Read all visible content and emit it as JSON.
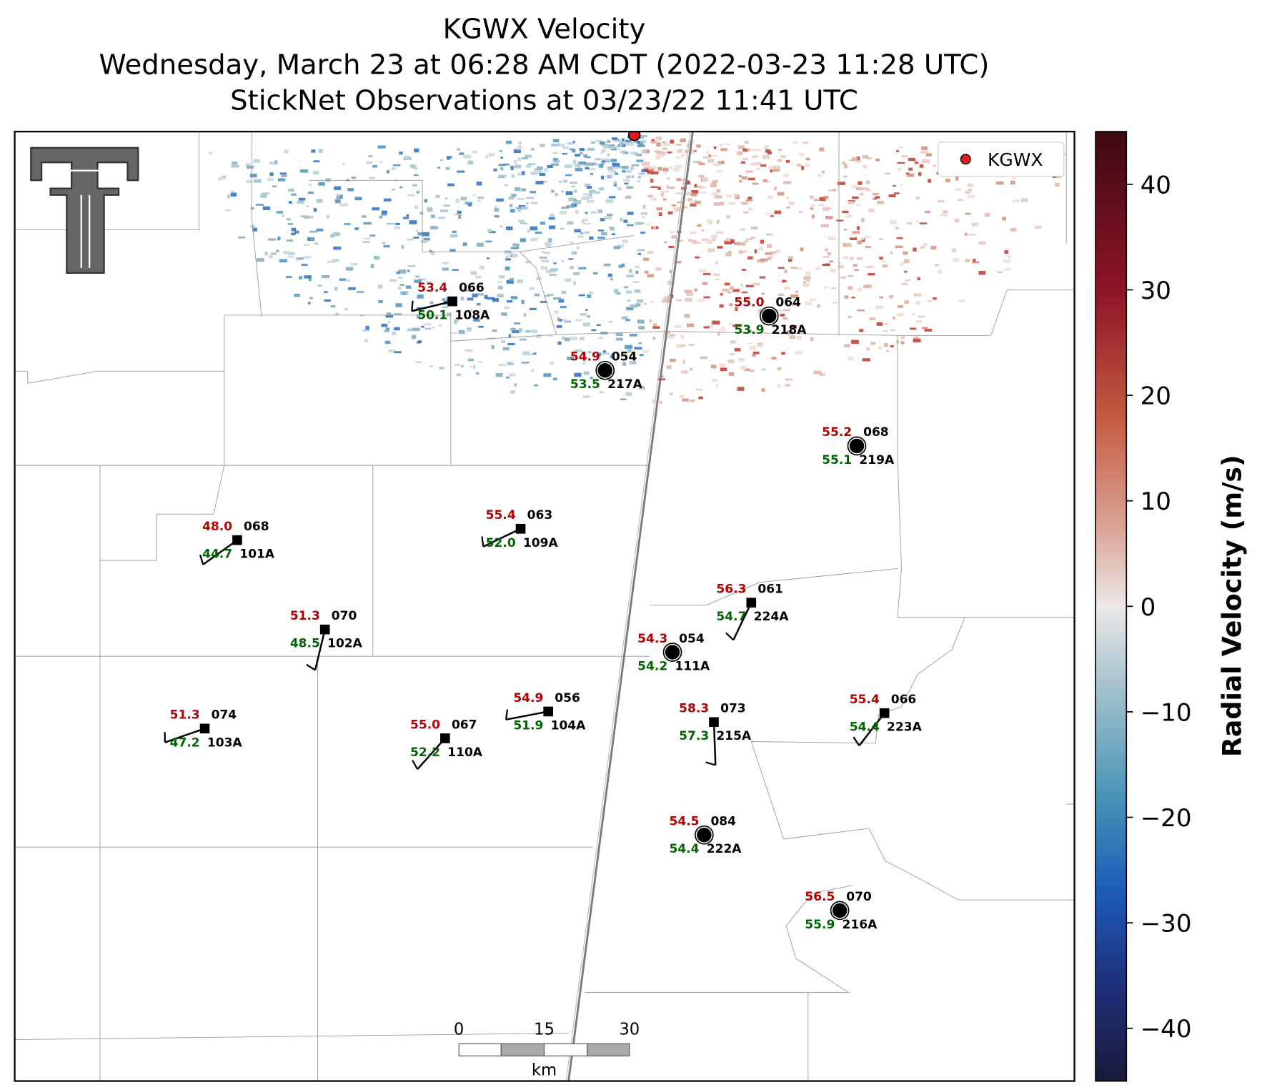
{
  "header": {
    "title": "KGWX Velocity",
    "subtitle": "Wednesday, March 23 at 06:28 AM CDT (2022-03-23 11:28 UTC)",
    "observations": "StickNet Observations at 03/23/22 11:41 UTC"
  },
  "legend": {
    "label": "KGWX"
  },
  "stations": [
    {
      "id": "108A",
      "temperature": "53.4",
      "dewpoint": "50.1",
      "pressure": "066",
      "marker": "square"
    },
    {
      "id": "218A",
      "temperature": "55.0",
      "dewpoint": "53.9",
      "pressure": "064",
      "marker": "circle"
    },
    {
      "id": "217A",
      "temperature": "54.9",
      "dewpoint": "53.5",
      "pressure": "054",
      "marker": "circle"
    },
    {
      "id": "219A",
      "temperature": "55.2",
      "dewpoint": "55.1",
      "pressure": "068",
      "marker": "circle"
    },
    {
      "id": "101A",
      "temperature": "48.0",
      "dewpoint": "44.7",
      "pressure": "068",
      "marker": "square"
    },
    {
      "id": "109A",
      "temperature": "55.4",
      "dewpoint": "52.0",
      "pressure": "063",
      "marker": "square"
    },
    {
      "id": "224A",
      "temperature": "56.3",
      "dewpoint": "54.7",
      "pressure": "061",
      "marker": "square"
    },
    {
      "id": "102A",
      "temperature": "51.3",
      "dewpoint": "48.5",
      "pressure": "070",
      "marker": "square"
    },
    {
      "id": "111A",
      "temperature": "54.3",
      "dewpoint": "54.2",
      "pressure": "054",
      "marker": "circle"
    },
    {
      "id": "104A",
      "temperature": "54.9",
      "dewpoint": "51.9",
      "pressure": "056",
      "marker": "square"
    },
    {
      "id": "103A",
      "temperature": "51.3",
      "dewpoint": "47.2",
      "pressure": "074",
      "marker": "square"
    },
    {
      "id": "110A",
      "temperature": "55.0",
      "dewpoint": "52.2",
      "pressure": "067",
      "marker": "square"
    },
    {
      "id": "215A",
      "temperature": "58.3",
      "dewpoint": "57.3",
      "pressure": "073",
      "marker": "square"
    },
    {
      "id": "223A",
      "temperature": "55.4",
      "dewpoint": "54.4",
      "pressure": "066",
      "marker": "square"
    },
    {
      "id": "222A",
      "temperature": "54.5",
      "dewpoint": "54.4",
      "pressure": "084",
      "marker": "circle"
    },
    {
      "id": "216A",
      "temperature": "56.5",
      "dewpoint": "55.9",
      "pressure": "070",
      "marker": "circle"
    }
  ],
  "colorbar": {
    "label": "Radial Velocity (m/s)",
    "lim": [
      -45,
      45
    ],
    "ticks": [
      40,
      30,
      20,
      10,
      0,
      {
        "value": -10,
        "label": "−10"
      },
      {
        "value": -20,
        "label": "−20"
      },
      {
        "value": -30,
        "label": "−30"
      },
      {
        "value": -40,
        "label": "−40"
      }
    ]
  },
  "scale_bar": {
    "ticks": [
      "0",
      "15",
      "30"
    ],
    "unit": "km"
  }
}
